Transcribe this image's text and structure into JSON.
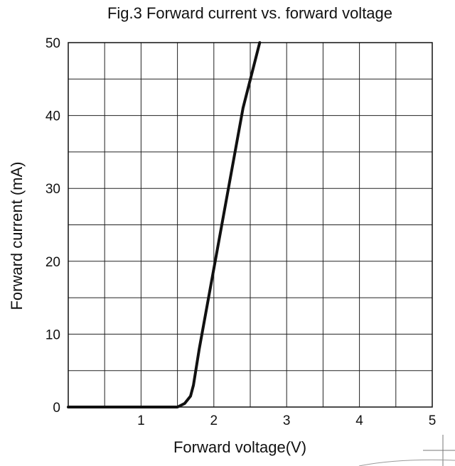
{
  "chart_data": {
    "type": "line",
    "title": "Fig.3 Forward current vs. forward voltage",
    "xlabel": "Forward voltage(V)",
    "ylabel": "Forward current (mA)",
    "xlim": [
      0,
      5
    ],
    "ylim": [
      0,
      50
    ],
    "xticks": [
      1,
      2,
      3,
      4,
      5
    ],
    "yticks": [
      0,
      10,
      20,
      30,
      40,
      50
    ],
    "grid": true,
    "grid_x_step": 0.5,
    "grid_y_step": 5,
    "line_color": "#111111",
    "series": [
      {
        "x": [
          0,
          0.5,
          1.0,
          1.5,
          1.6,
          1.68,
          1.72,
          1.8,
          2.0,
          2.2,
          2.4,
          2.63
        ],
        "y": [
          0,
          0,
          0,
          0,
          0.5,
          1.5,
          3,
          8,
          19,
          30,
          41,
          50
        ]
      }
    ]
  }
}
